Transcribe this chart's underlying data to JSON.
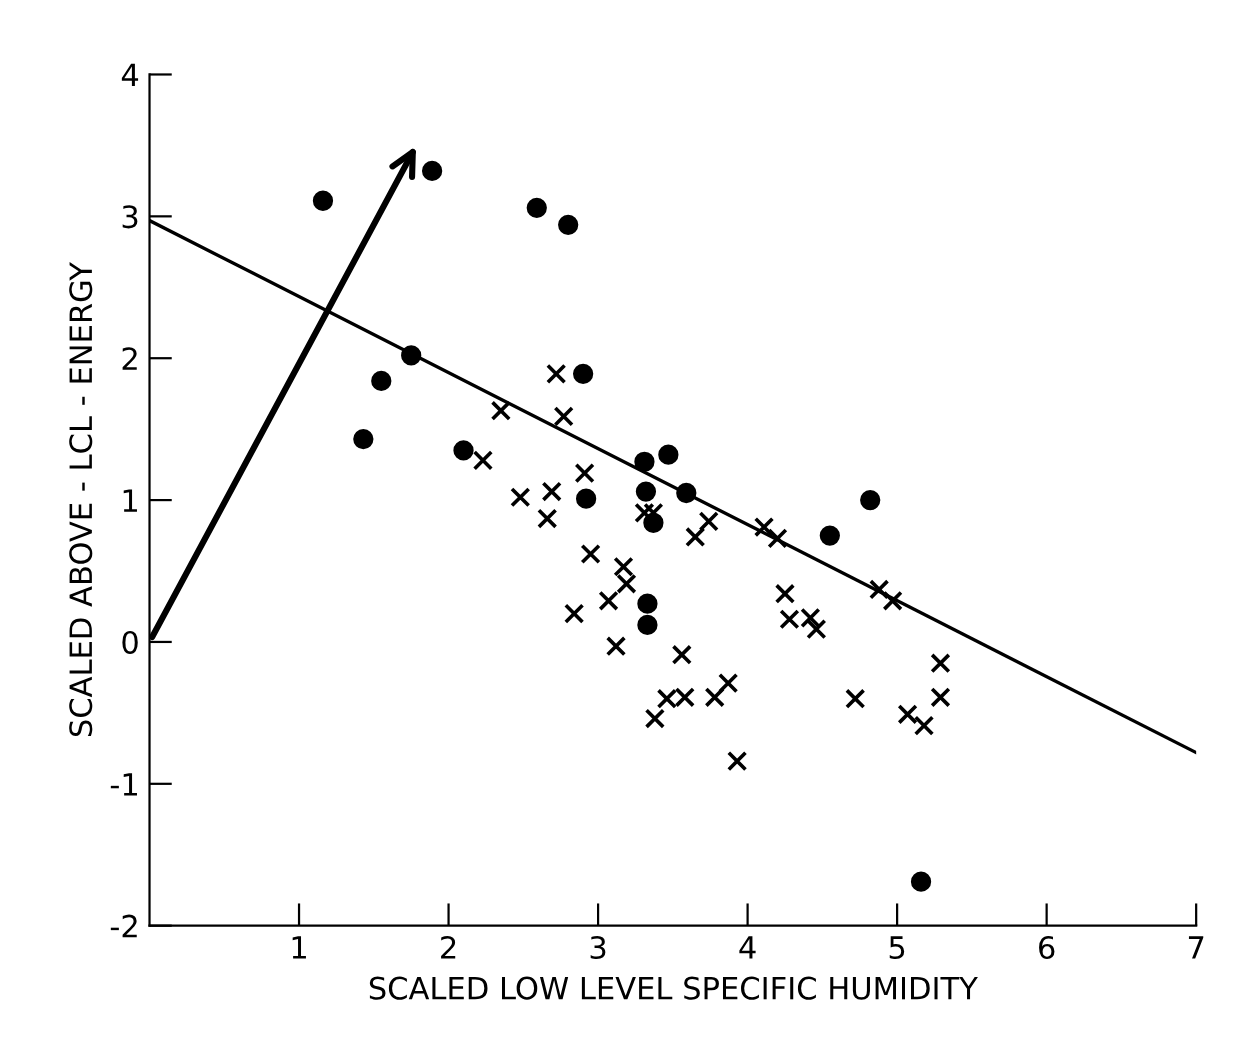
{
  "chart_data": {
    "type": "scatter",
    "xlabel": "SCALED LOW LEVEL SPECIFIC HUMIDITY",
    "ylabel": "SCALED ABOVE - LCL - ENERGY",
    "xlim": [
      0,
      7
    ],
    "xticks": [
      1,
      2,
      3,
      4,
      5,
      6,
      7
    ],
    "ylim": [
      -2,
      4
    ],
    "yticks": [
      -2,
      -1,
      0,
      1,
      2,
      3,
      4
    ],
    "grid": false,
    "legend": false,
    "series": [
      {
        "marker": "circle",
        "color": "#000000",
        "x": [
          1.16,
          1.89,
          2.59,
          2.8,
          1.75,
          1.55,
          1.43,
          2.1,
          2.9,
          2.92,
          3.31,
          3.32,
          3.37,
          3.47,
          3.59,
          3.33,
          3.33,
          4.55,
          4.82,
          5.16
        ],
        "values": [
          3.11,
          3.32,
          3.06,
          2.94,
          2.02,
          1.84,
          1.43,
          1.35,
          1.89,
          1.01,
          1.27,
          1.06,
          0.84,
          1.32,
          1.05,
          0.27,
          0.12,
          0.75,
          1.0,
          -1.69
        ]
      },
      {
        "marker": "cross",
        "color": "#000000",
        "x": [
          2.23,
          2.35,
          2.72,
          2.77,
          2.91,
          2.48,
          2.69,
          2.66,
          3.31,
          3.37,
          2.95,
          3.17,
          3.19,
          3.07,
          2.84,
          3.12,
          3.56,
          3.38,
          3.46,
          3.58,
          3.78,
          3.87,
          3.93,
          3.74,
          3.65,
          4.11,
          4.2,
          4.25,
          4.28,
          4.42,
          4.46,
          4.88,
          4.97,
          4.72,
          5.07,
          5.18,
          5.29,
          5.29
        ],
        "values": [
          1.28,
          1.63,
          1.89,
          1.59,
          1.19,
          1.02,
          1.06,
          0.87,
          0.91,
          0.91,
          0.62,
          0.53,
          0.41,
          0.29,
          0.2,
          -0.03,
          -0.09,
          -0.54,
          -0.4,
          -0.39,
          -0.39,
          -0.29,
          -0.84,
          0.85,
          0.74,
          0.81,
          0.73,
          0.34,
          0.16,
          0.17,
          0.09,
          0.37,
          0.29,
          -0.4,
          -0.51,
          -0.59,
          -0.15,
          -0.39
        ]
      },
      {
        "type": "line",
        "color": "#000000",
        "line_style": "solid",
        "x": [
          0,
          7
        ],
        "values": [
          2.97,
          -0.78
        ]
      }
    ]
  }
}
